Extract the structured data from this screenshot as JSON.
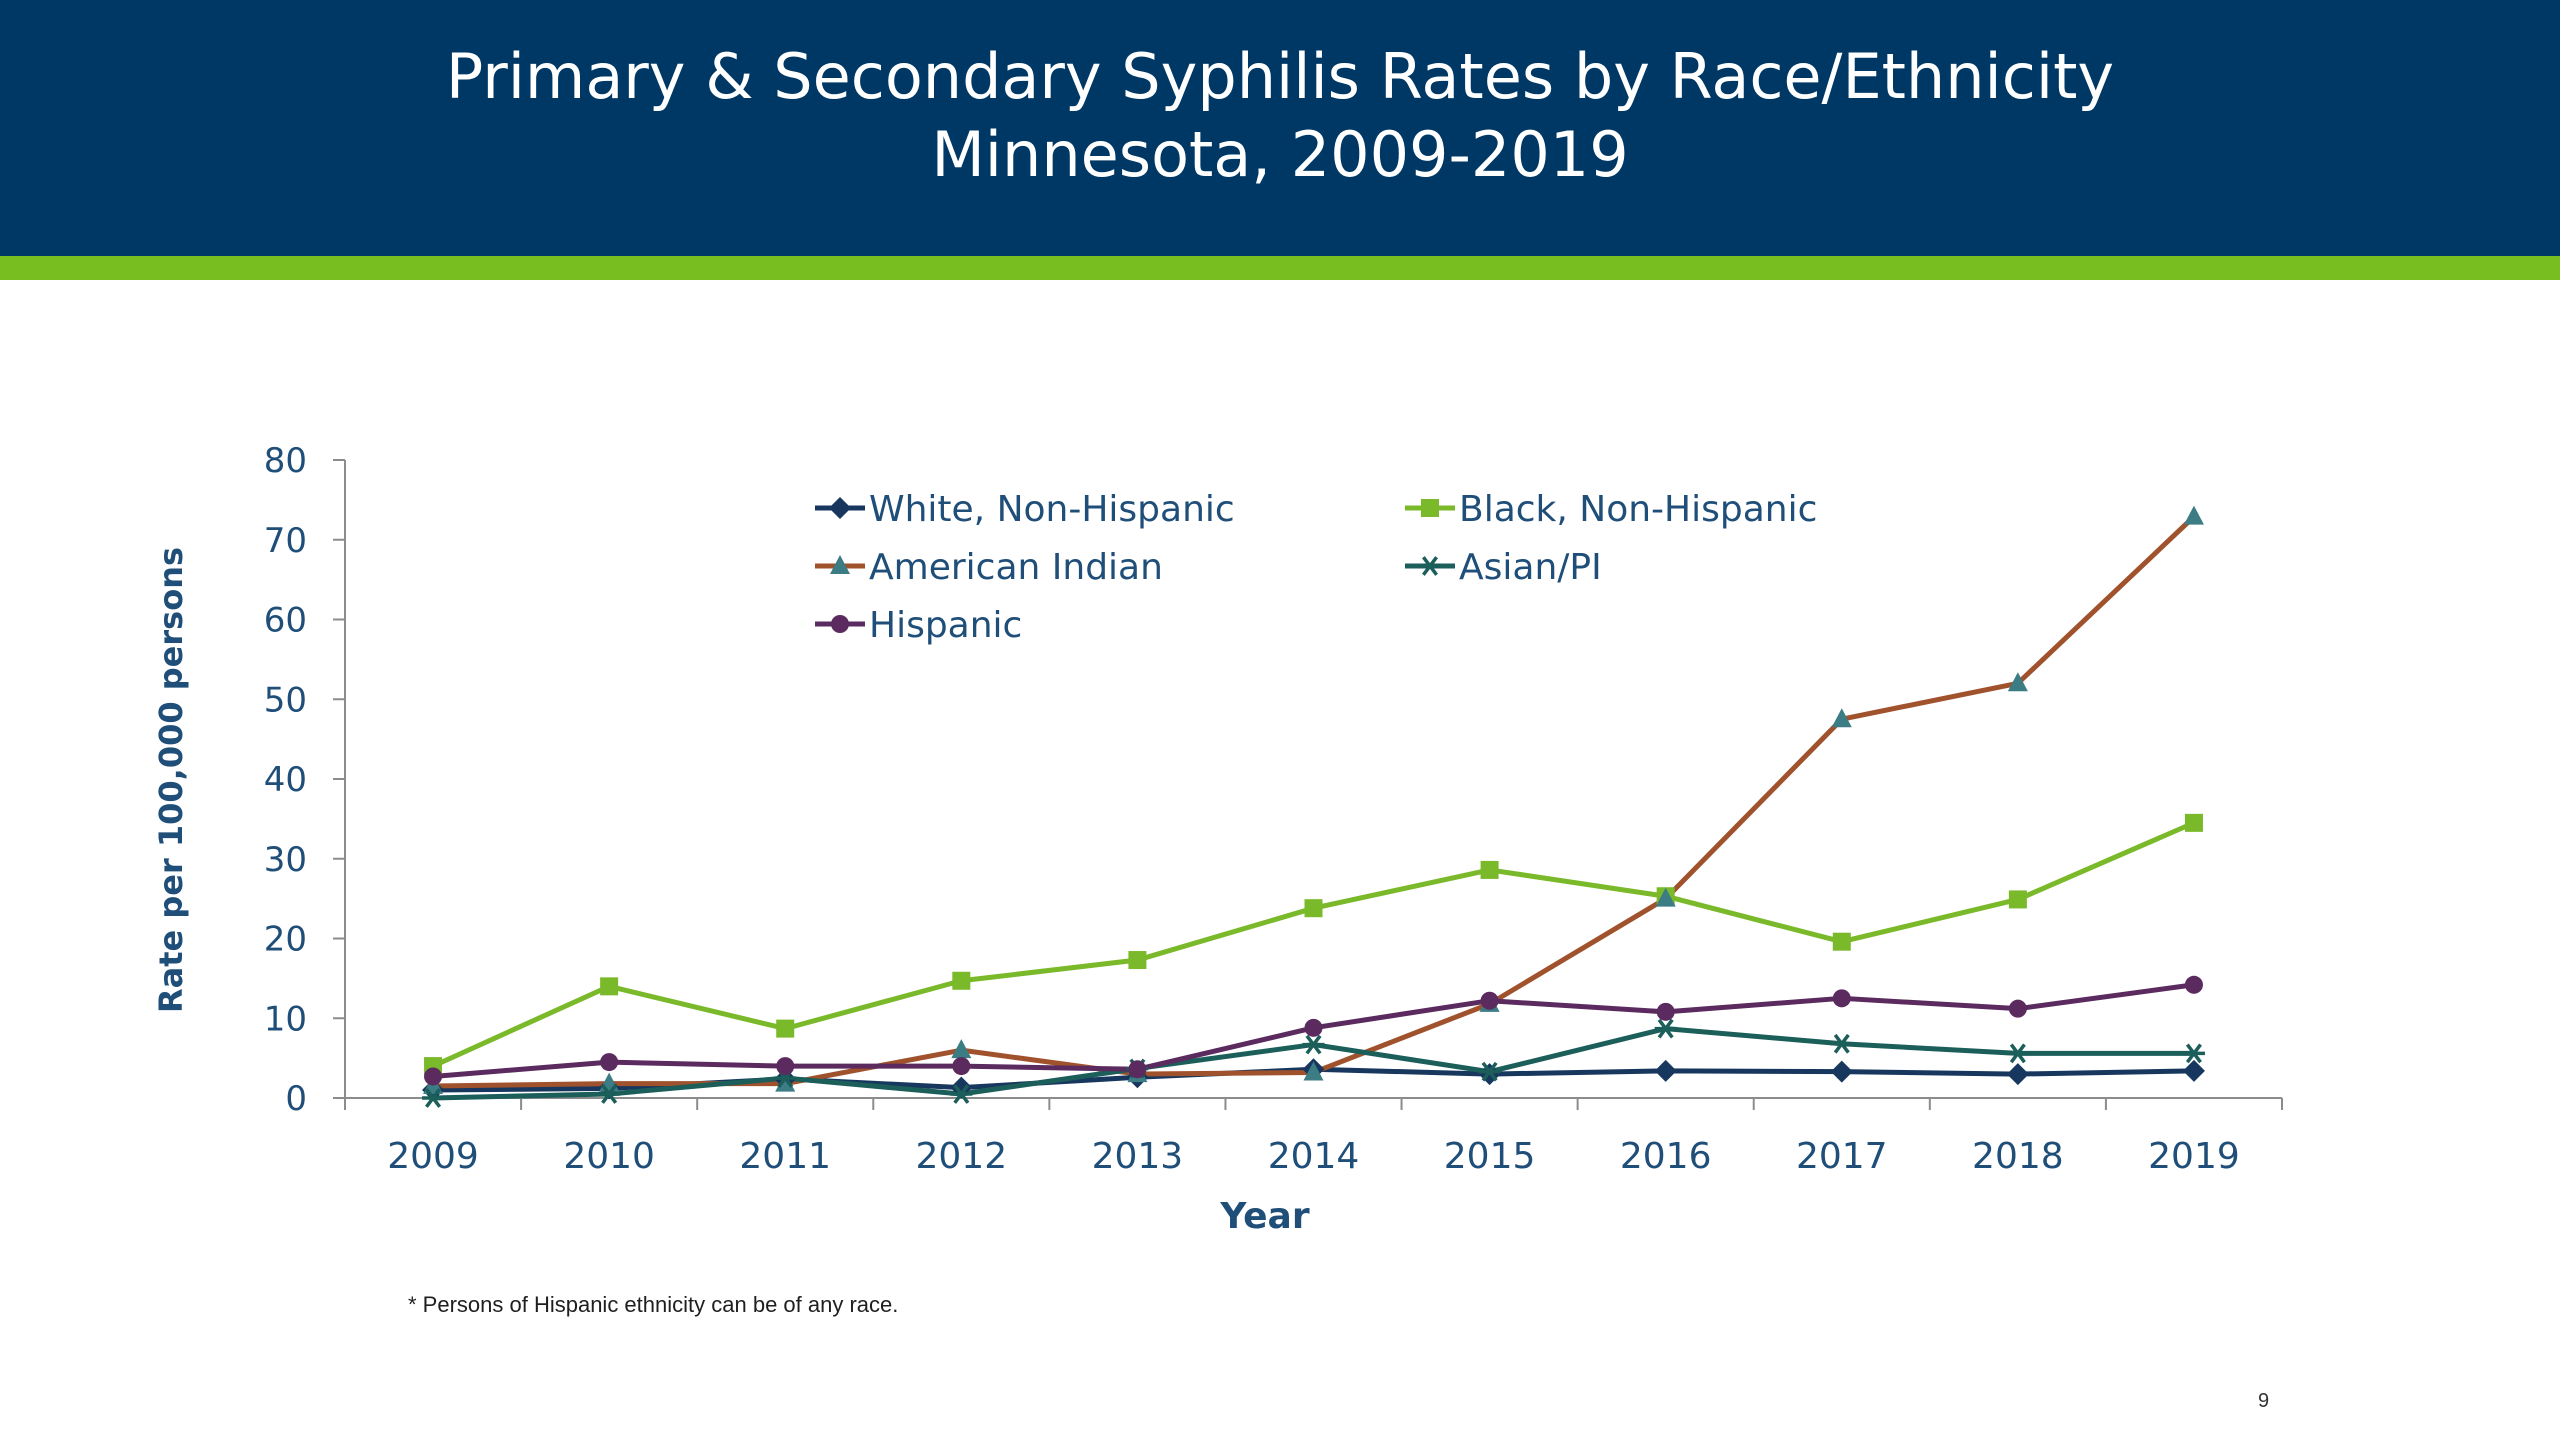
{
  "slide": {
    "title_line1": "Primary & Secondary Syphilis Rates by Race/Ethnicity",
    "title_line2": "Minnesota, 2009-2019",
    "footnote": "* Persons of Hispanic ethnicity can be of any race.",
    "slide_number": "9",
    "colors": {
      "header": "#003865",
      "accent_bar": "#78BE21",
      "text": "#1F4E79"
    }
  },
  "chart_data": {
    "type": "line",
    "title": "Primary & Secondary Syphilis Rates by Race/Ethnicity Minnesota, 2009-2019",
    "xlabel": "Year",
    "ylabel": "Rate per 100,000 persons",
    "ylim": [
      0,
      80
    ],
    "yticks": [
      "0",
      "10",
      "20",
      "30",
      "40",
      "50",
      "60",
      "70",
      "80"
    ],
    "categories": [
      "2009",
      "2010",
      "2011",
      "2012",
      "2013",
      "2014",
      "2015",
      "2016",
      "2017",
      "2018",
      "2019"
    ],
    "legend_position": "top",
    "grid": false,
    "series": [
      {
        "name": "White, Non-Hispanic",
        "color": "#17375E",
        "marker": "diamond",
        "values": [
          1.0,
          1.2,
          2.4,
          1.3,
          2.6,
          3.6,
          3.0,
          3.4,
          3.3,
          3.0,
          3.4
        ]
      },
      {
        "name": "Black, Non-Hispanic",
        "color": "#7AB929",
        "marker": "square",
        "values": [
          4.0,
          14.0,
          8.7,
          14.7,
          17.3,
          23.8,
          28.6,
          25.3,
          19.6,
          24.9,
          34.5
        ]
      },
      {
        "name": "American Indian",
        "color": "#A0522D",
        "marker": "triangle",
        "values": [
          1.5,
          1.8,
          1.8,
          6.0,
          3.0,
          3.2,
          11.8,
          25.0,
          47.5,
          52.0,
          72.9
        ]
      },
      {
        "name": "Asian/PI",
        "color": "#1B5E5A",
        "marker": "asterisk",
        "values": [
          0.0,
          0.5,
          2.5,
          0.5,
          3.7,
          6.7,
          3.3,
          8.7,
          6.8,
          5.6,
          5.6
        ]
      },
      {
        "name": "Hispanic",
        "color": "#5B2A5E",
        "marker": "circle",
        "values": [
          2.7,
          4.5,
          4.0,
          4.0,
          3.6,
          8.8,
          12.2,
          10.8,
          12.5,
          11.2,
          14.2
        ]
      }
    ]
  }
}
